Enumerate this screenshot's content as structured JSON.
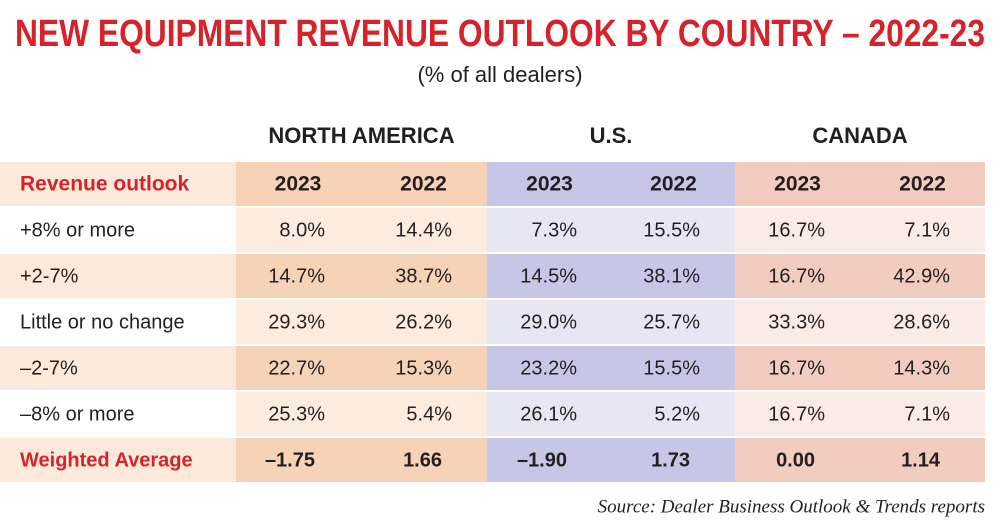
{
  "title": "NEW EQUIPMENT REVENUE OUTLOOK BY COUNTRY – 2022-23",
  "subtitle": "(% of all dealers)",
  "table": {
    "groups": [
      "NORTH AMERICA",
      "U.S.",
      "CANADA"
    ],
    "header": [
      "Revenue outlook",
      "2023",
      "2022",
      "2023",
      "2022",
      "2023",
      "2022"
    ],
    "rows": [
      [
        "+8% or more",
        "8.0%",
        "14.4%",
        "7.3%",
        "15.5%",
        "16.7%",
        "7.1%"
      ],
      [
        "+2-7%",
        "14.7%",
        "38.7%",
        "14.5%",
        "38.1%",
        "16.7%",
        "42.9%"
      ],
      [
        "Little or no change",
        "29.3%",
        "26.2%",
        "29.0%",
        "25.7%",
        "33.3%",
        "28.6%"
      ],
      [
        "–2-7%",
        "22.7%",
        "15.3%",
        "23.2%",
        "15.5%",
        "16.7%",
        "14.3%"
      ],
      [
        "–8% or more",
        "25.3%",
        "5.4%",
        "26.1%",
        "5.2%",
        "16.7%",
        "7.1%"
      ],
      [
        "Weighted Average",
        "–1.75",
        "1.66",
        "–1.90",
        "1.73",
        "0.00",
        "1.14"
      ]
    ]
  },
  "source": "Source: Dealer Business Outlook & Trends reports"
}
